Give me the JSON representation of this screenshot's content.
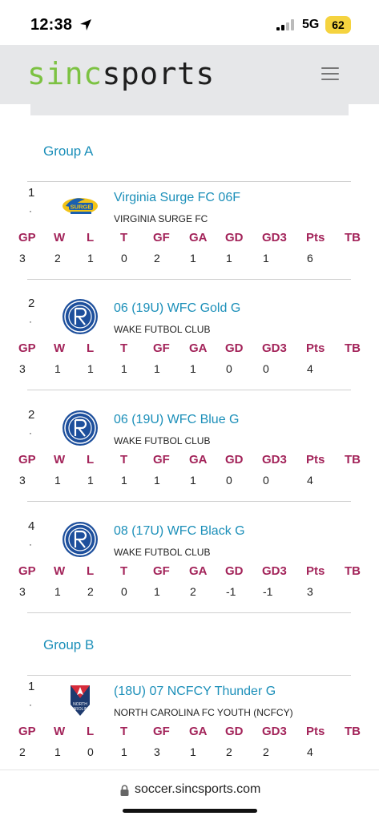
{
  "status_bar": {
    "time": "12:38",
    "network": "5G",
    "battery": "62"
  },
  "header": {
    "logo_part1": "sinc",
    "logo_part2": "sports"
  },
  "columns": [
    "GP",
    "W",
    "L",
    "T",
    "GF",
    "GA",
    "GD",
    "GD3",
    "Pts",
    "TB"
  ],
  "groups": [
    {
      "title": "Group A",
      "teams": [
        {
          "rank": "1",
          "name": "Virginia Surge FC 06F",
          "club": "VIRGINIA SURGE FC",
          "logo": "virginia-surge-logo",
          "stats": [
            "3",
            "2",
            "1",
            "0",
            "2",
            "1",
            "1",
            "1",
            "6",
            ""
          ]
        },
        {
          "rank": "2",
          "name": "06 (19U) WFC Gold G",
          "club": "WAKE FUTBOL CLUB",
          "logo": "wake-futbol-club-logo",
          "stats": [
            "3",
            "1",
            "1",
            "1",
            "1",
            "1",
            "0",
            "0",
            "4",
            ""
          ]
        },
        {
          "rank": "2",
          "name": "06 (19U) WFC Blue G",
          "club": "WAKE FUTBOL CLUB",
          "logo": "wake-futbol-club-logo",
          "stats": [
            "3",
            "1",
            "1",
            "1",
            "1",
            "1",
            "0",
            "0",
            "4",
            ""
          ]
        },
        {
          "rank": "4",
          "name": "08 (17U) WFC Black G",
          "club": "WAKE FUTBOL CLUB",
          "logo": "wake-futbol-club-logo",
          "stats": [
            "3",
            "1",
            "2",
            "0",
            "1",
            "2",
            "-1",
            "-1",
            "3",
            ""
          ]
        }
      ]
    },
    {
      "title": "Group B",
      "teams": [
        {
          "rank": "1",
          "name": "(18U) 07 NCFCY Thunder G",
          "club": "NORTH CAROLINA FC YOUTH (NCFCY)",
          "logo": "ncfc-youth-logo",
          "stats": [
            "2",
            "1",
            "0",
            "1",
            "3",
            "1",
            "2",
            "2",
            "4",
            ""
          ]
        }
      ]
    }
  ],
  "url_bar": {
    "url": "soccer.sincsports.com"
  }
}
